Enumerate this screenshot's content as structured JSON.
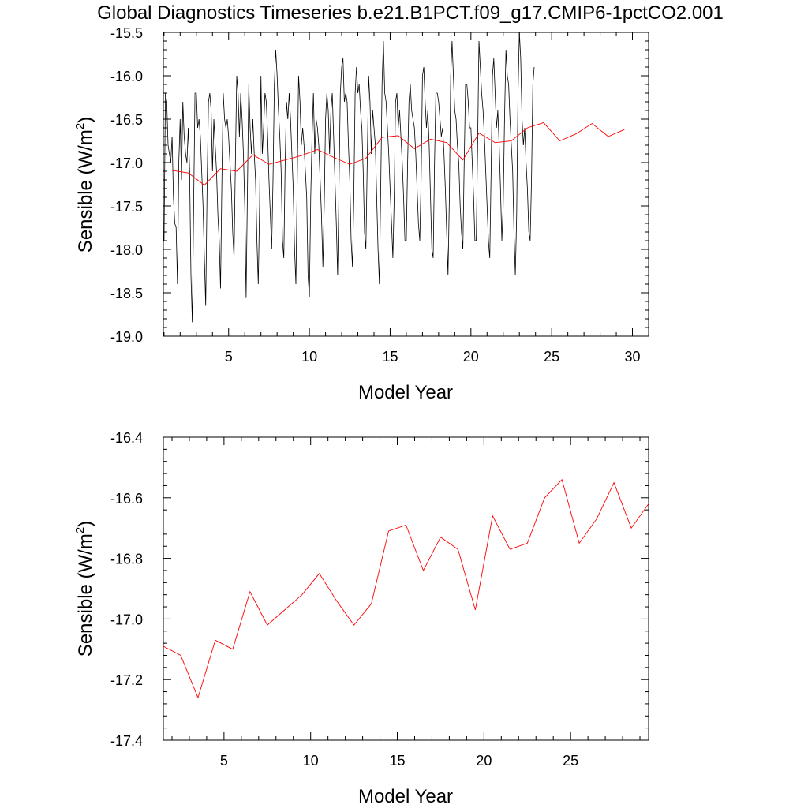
{
  "title": "Global Diagnostics Timeseries b.e21.B1PCT.f09_g17.CMIP6-1pctCO2.001",
  "colors": {
    "monthly": "#000000",
    "annual": "#ff0000",
    "axis": "#000000",
    "background": "#ffffff"
  },
  "chart_data": [
    {
      "type": "line",
      "xlabel": "Model Year",
      "ylabel_main": "Sensible (W/m",
      "ylabel_sup": "2",
      "ylabel_close": ")",
      "xlim": [
        0.958,
        31.0
      ],
      "ylim": [
        -19.0,
        -15.5
      ],
      "xticks": [
        5,
        10,
        15,
        20,
        25,
        30
      ],
      "xtick_labels": [
        "5",
        "10",
        "15",
        "20",
        "25",
        "30"
      ],
      "yticks": [
        -19.0,
        -18.5,
        -18.0,
        -17.5,
        -17.0,
        -16.5,
        -16.0,
        -15.5
      ],
      "ytick_labels": [
        "-19.0",
        "-18.5",
        "-18.0",
        "-17.5",
        "-17.0",
        "-16.5",
        "-16.0",
        "-15.5"
      ],
      "series": [
        {
          "role": "monthly",
          "x_start": 1.0,
          "x_step": 0.08333,
          "values": [
            -17.9,
            -16.2,
            -16.3,
            -16.8,
            -16.9,
            -17.0,
            -16.7,
            -17.4,
            -17.7,
            -17.75,
            -18.4,
            -17.0,
            -16.5,
            -17.2,
            -16.3,
            -16.7,
            -16.9,
            -17.0,
            -16.6,
            -17.1,
            -18.3,
            -18.84,
            -17.5,
            -16.2,
            -16.2,
            -16.6,
            -16.5,
            -16.7,
            -17.1,
            -17.5,
            -18.1,
            -18.65,
            -17.3,
            -16.3,
            -16.2,
            -16.4,
            -17.1,
            -16.5,
            -16.8,
            -17.1,
            -17.6,
            -17.9,
            -18.45,
            -17.2,
            -16.2,
            -16.5,
            -16.6,
            -16.5,
            -16.7,
            -17.0,
            -17.3,
            -17.8,
            -18.1,
            -17.0,
            -16.0,
            -16.2,
            -16.7,
            -16.2,
            -16.5,
            -16.9,
            -17.5,
            -18.56,
            -17.3,
            -16.1,
            -16.6,
            -16.9,
            -16.5,
            -16.9,
            -17.2,
            -17.9,
            -18.4,
            -17.5,
            -16.0,
            -16.9,
            -16.6,
            -16.2,
            -16.3,
            -16.7,
            -17.2,
            -17.6,
            -18.0,
            -17.2,
            -16.1,
            -15.7,
            -16.0,
            -16.4,
            -16.7,
            -17.1,
            -17.9,
            -18.1,
            -17.0,
            -16.3,
            -16.5,
            -16.2,
            -16.5,
            -16.9,
            -17.3,
            -18.0,
            -18.4,
            -17.2,
            -16.0,
            -16.3,
            -16.8,
            -16.6,
            -16.8,
            -17.1,
            -17.4,
            -18.3,
            -18.55,
            -17.4,
            -16.7,
            -16.2,
            -16.9,
            -16.5,
            -16.6,
            -16.8,
            -17.2,
            -17.6,
            -18.2,
            -17.5,
            -16.5,
            -16.2,
            -16.4,
            -16.9,
            -16.4,
            -16.2,
            -16.7,
            -17.2,
            -17.7,
            -18.3,
            -17.3,
            -16.2,
            -15.9,
            -15.8,
            -16.3,
            -16.2,
            -16.3,
            -16.8,
            -17.2,
            -17.9,
            -18.2,
            -17.4,
            -16.2,
            -15.9,
            -16.2,
            -16.1,
            -16.4,
            -16.6,
            -17.1,
            -17.8,
            -18.0,
            -17.0,
            -16.0,
            -16.3,
            -16.9,
            -16.4,
            -16.6,
            -16.8,
            -17.4,
            -18.0,
            -18.4,
            -17.3,
            -16.1,
            -15.6,
            -16.2,
            -16.3,
            -16.6,
            -16.9,
            -17.3,
            -17.7,
            -18.1,
            -17.4,
            -16.3,
            -16.2,
            -16.6,
            -16.4,
            -16.7,
            -17.0,
            -17.4,
            -17.9,
            -17.9,
            -17.0,
            -16.3,
            -16.1,
            -16.4,
            -16.5,
            -16.6,
            -16.9,
            -17.3,
            -17.7,
            -17.9,
            -17.2,
            -16.0,
            -15.9,
            -16.3,
            -16.6,
            -16.4,
            -16.8,
            -17.4,
            -18.0,
            -18.1,
            -17.0,
            -16.2,
            -16.2,
            -16.3,
            -16.5,
            -16.7,
            -16.6,
            -16.9,
            -17.3,
            -17.8,
            -18.3,
            -17.4,
            -16.0,
            -15.6,
            -16.0,
            -16.4,
            -16.5,
            -16.8,
            -17.0,
            -17.5,
            -17.8,
            -18.0,
            -17.0,
            -16.1,
            -16.1,
            -16.3,
            -16.6,
            -16.6,
            -17.0,
            -17.4,
            -17.9,
            -17.9,
            -16.8,
            -15.6,
            -15.9,
            -16.2,
            -16.4,
            -16.7,
            -17.1,
            -17.5,
            -17.9,
            -18.1,
            -17.1,
            -16.0,
            -15.8,
            -16.2,
            -16.6,
            -16.4,
            -16.8,
            -17.3,
            -17.9,
            -17.5,
            -16.5,
            -15.7,
            -16.0,
            -16.1,
            -16.5,
            -16.8,
            -17.1,
            -17.8,
            -18.3,
            -17.6,
            -16.2,
            -15.5,
            -15.8,
            -16.5,
            -16.8,
            -16.6,
            -17.0,
            -17.3,
            -17.8,
            -17.9,
            -17.2,
            -16.1,
            -15.9
          ]
        },
        {
          "role": "annual",
          "x": [
            1.5,
            2.5,
            3.5,
            4.5,
            5.5,
            6.5,
            7.5,
            8.5,
            9.5,
            10.5,
            11.5,
            12.5,
            13.5,
            14.5,
            15.5,
            16.5,
            17.5,
            18.5,
            19.5,
            20.5,
            21.5,
            22.5,
            23.5,
            24.5,
            25.5,
            26.5,
            27.5,
            28.5,
            29.5
          ],
          "values": [
            -17.09,
            -17.12,
            -17.26,
            -17.07,
            -17.1,
            -16.91,
            -17.02,
            -16.97,
            -16.92,
            -16.85,
            -16.94,
            -17.02,
            -16.95,
            -16.71,
            -16.69,
            -16.84,
            -16.73,
            -16.77,
            -16.97,
            -16.66,
            -16.77,
            -16.75,
            -16.6,
            -16.54,
            -16.75,
            -16.67,
            -16.55,
            -16.7,
            -16.62
          ]
        }
      ]
    },
    {
      "type": "line",
      "xlabel": "Model Year",
      "ylabel_main": "Sensible (W/m",
      "ylabel_sup": "2",
      "ylabel_close": ")",
      "xlim": [
        1.5,
        29.5
      ],
      "ylim": [
        -17.4,
        -16.4
      ],
      "xticks": [
        5,
        10,
        15,
        20,
        25
      ],
      "xtick_labels": [
        "5",
        "10",
        "15",
        "20",
        "25"
      ],
      "yticks": [
        -17.4,
        -17.2,
        -17.0,
        -16.8,
        -16.6,
        -16.4
      ],
      "ytick_labels": [
        "-17.4",
        "-17.2",
        "-17.0",
        "-16.8",
        "-16.6",
        "-16.4"
      ],
      "series": [
        {
          "role": "annual",
          "x": [
            1.5,
            2.5,
            3.5,
            4.5,
            5.5,
            6.5,
            7.5,
            8.5,
            9.5,
            10.5,
            11.5,
            12.5,
            13.5,
            14.5,
            15.5,
            16.5,
            17.5,
            18.5,
            19.5,
            20.5,
            21.5,
            22.5,
            23.5,
            24.5,
            25.5,
            26.5,
            27.5,
            28.5,
            29.5
          ],
          "values": [
            -17.09,
            -17.12,
            -17.26,
            -17.07,
            -17.1,
            -16.91,
            -17.02,
            -16.97,
            -16.92,
            -16.85,
            -16.94,
            -17.02,
            -16.95,
            -16.71,
            -16.69,
            -16.84,
            -16.73,
            -16.77,
            -16.97,
            -16.66,
            -16.77,
            -16.75,
            -16.6,
            -16.54,
            -16.75,
            -16.67,
            -16.55,
            -16.7,
            -16.62
          ]
        }
      ]
    }
  ]
}
